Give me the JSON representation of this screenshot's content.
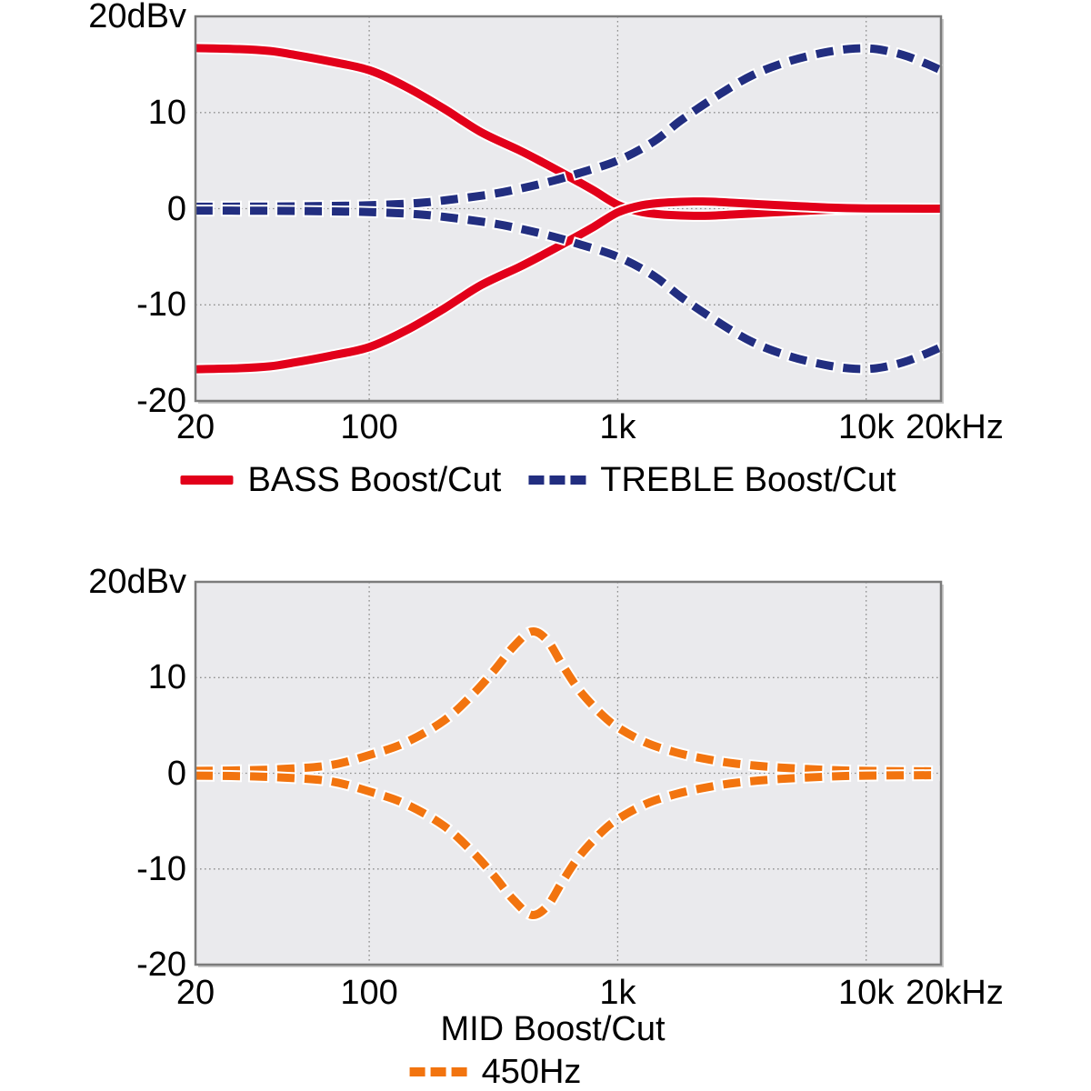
{
  "colors": {
    "bass": "#e2001a",
    "treble": "#222e80",
    "mid": "#f2740f",
    "plot_bg": "#eaeaed",
    "grid": "#8f8f8f",
    "frame": "#7b7b7b",
    "text": "#000000",
    "casing": "#ffffff"
  },
  "chart_data": [
    {
      "type": "line",
      "title": "",
      "xlabel": "",
      "ylabel": "dBv",
      "xscale": "log",
      "xlim": [
        20,
        20000
      ],
      "ylim": [
        -20,
        20
      ],
      "grid_x": [
        100,
        1000,
        10000
      ],
      "grid_y": [
        10,
        0,
        -10
      ],
      "y_ticks": [
        {
          "v": 20,
          "label": "20dBv"
        },
        {
          "v": 10,
          "label": "10"
        },
        {
          "v": 0,
          "label": "0"
        },
        {
          "v": -10,
          "label": "-10"
        },
        {
          "v": -20,
          "label": "-20"
        }
      ],
      "x_ticks": [
        {
          "f": 20,
          "label": "20"
        },
        {
          "f": 100,
          "label": "100"
        },
        {
          "f": 1000,
          "label": "1k"
        },
        {
          "f": 10000,
          "label": "10k"
        },
        {
          "f": 20000,
          "label": "20kHz",
          "dx": 15
        }
      ],
      "series": [
        {
          "name": "BASS Boost",
          "style": "solid",
          "color_key": "bass",
          "points": [
            [
              20,
              16.7
            ],
            [
              30,
              16.6
            ],
            [
              40,
              16.4
            ],
            [
              50,
              16.0
            ],
            [
              70,
              15.3
            ],
            [
              100,
              14.4
            ],
            [
              140,
              12.7
            ],
            [
              200,
              10.4
            ],
            [
              280,
              8.0
            ],
            [
              400,
              6.1
            ],
            [
              500,
              4.8
            ],
            [
              630,
              3.4
            ],
            [
              800,
              1.9
            ],
            [
              1000,
              0.4
            ],
            [
              1250,
              -0.35
            ],
            [
              1600,
              -0.65
            ],
            [
              2200,
              -0.75
            ],
            [
              3000,
              -0.6
            ],
            [
              4500,
              -0.35
            ],
            [
              7000,
              -0.12
            ],
            [
              10000,
              -0.03
            ],
            [
              20000,
              0
            ]
          ]
        },
        {
          "name": "BASS Cut",
          "style": "solid",
          "color_key": "bass",
          "points": [
            [
              20,
              -16.7
            ],
            [
              30,
              -16.6
            ],
            [
              40,
              -16.4
            ],
            [
              50,
              -16.0
            ],
            [
              70,
              -15.3
            ],
            [
              100,
              -14.4
            ],
            [
              140,
              -12.7
            ],
            [
              200,
              -10.4
            ],
            [
              280,
              -8.0
            ],
            [
              400,
              -6.1
            ],
            [
              500,
              -4.8
            ],
            [
              630,
              -3.4
            ],
            [
              800,
              -1.9
            ],
            [
              1000,
              -0.4
            ],
            [
              1250,
              0.35
            ],
            [
              1600,
              0.65
            ],
            [
              2200,
              0.75
            ],
            [
              3000,
              0.6
            ],
            [
              4500,
              0.35
            ],
            [
              7000,
              0.12
            ],
            [
              10000,
              0.03
            ],
            [
              20000,
              0
            ]
          ]
        },
        {
          "name": "TREBLE Boost",
          "style": "dashed",
          "color_key": "treble",
          "points": [
            [
              20,
              0.2
            ],
            [
              40,
              0.22
            ],
            [
              70,
              0.28
            ],
            [
              100,
              0.35
            ],
            [
              150,
              0.55
            ],
            [
              200,
              0.85
            ],
            [
              300,
              1.45
            ],
            [
              400,
              2.05
            ],
            [
              550,
              2.9
            ],
            [
              700,
              3.7
            ],
            [
              1000,
              5.0
            ],
            [
              1400,
              7.0
            ],
            [
              1800,
              9.2
            ],
            [
              2500,
              11.7
            ],
            [
              3500,
              13.9
            ],
            [
              5000,
              15.4
            ],
            [
              7000,
              16.3
            ],
            [
              9000,
              16.65
            ],
            [
              11000,
              16.6
            ],
            [
              14000,
              16.0
            ],
            [
              17000,
              15.2
            ],
            [
              20000,
              14.4
            ]
          ]
        },
        {
          "name": "TREBLE Cut",
          "style": "dashed",
          "color_key": "treble",
          "points": [
            [
              20,
              -0.2
            ],
            [
              40,
              -0.22
            ],
            [
              70,
              -0.28
            ],
            [
              100,
              -0.35
            ],
            [
              150,
              -0.55
            ],
            [
              200,
              -0.85
            ],
            [
              300,
              -1.45
            ],
            [
              400,
              -2.05
            ],
            [
              550,
              -2.9
            ],
            [
              700,
              -3.7
            ],
            [
              1000,
              -5.0
            ],
            [
              1400,
              -7.0
            ],
            [
              1800,
              -9.2
            ],
            [
              2500,
              -11.7
            ],
            [
              3500,
              -13.9
            ],
            [
              5000,
              -15.4
            ],
            [
              7000,
              -16.3
            ],
            [
              9000,
              -16.65
            ],
            [
              11000,
              -16.6
            ],
            [
              14000,
              -16.0
            ],
            [
              17000,
              -15.2
            ],
            [
              20000,
              -14.4
            ]
          ]
        }
      ],
      "legend": [
        {
          "label": "BASS Boost/Cut",
          "style": "solid",
          "color_key": "bass"
        },
        {
          "label": "TREBLE Boost/Cut",
          "style": "dashed",
          "color_key": "treble"
        }
      ]
    },
    {
      "type": "line",
      "title": "",
      "xlabel": "MID Boost/Cut",
      "ylabel": "dBv",
      "xscale": "log",
      "xlim": [
        20,
        20000
      ],
      "ylim": [
        -20,
        20
      ],
      "grid_x": [
        100,
        1000,
        10000
      ],
      "grid_y": [
        10,
        0,
        -10
      ],
      "y_ticks": [
        {
          "v": 20,
          "label": "20dBv"
        },
        {
          "v": 10,
          "label": "10"
        },
        {
          "v": 0,
          "label": "0"
        },
        {
          "v": -10,
          "label": "-10"
        },
        {
          "v": -20,
          "label": "-20"
        }
      ],
      "x_ticks": [
        {
          "f": 20,
          "label": "20"
        },
        {
          "f": 100,
          "label": "100"
        },
        {
          "f": 1000,
          "label": "1k"
        },
        {
          "f": 10000,
          "label": "10k"
        },
        {
          "f": 20000,
          "label": "20kHz",
          "dx": 15
        }
      ],
      "series": [
        {
          "name": "MID Boost 450Hz",
          "style": "dashed",
          "color_key": "mid",
          "points": [
            [
              20,
              0.25
            ],
            [
              30,
              0.3
            ],
            [
              45,
              0.45
            ],
            [
              70,
              0.85
            ],
            [
              100,
              1.9
            ],
            [
              140,
              3.2
            ],
            [
              200,
              5.5
            ],
            [
              260,
              8.2
            ],
            [
              320,
              10.8
            ],
            [
              380,
              13.2
            ],
            [
              450,
              14.8
            ],
            [
              520,
              13.9
            ],
            [
              600,
              11.3
            ],
            [
              700,
              8.7
            ],
            [
              850,
              6.3
            ],
            [
              1000,
              4.8
            ],
            [
              1300,
              3.2
            ],
            [
              1700,
              2.2
            ],
            [
              2200,
              1.55
            ],
            [
              3000,
              1.0
            ],
            [
              4500,
              0.6
            ],
            [
              7000,
              0.35
            ],
            [
              10000,
              0.25
            ],
            [
              20000,
              0.2
            ]
          ]
        },
        {
          "name": "MID Cut 450Hz",
          "style": "dashed",
          "color_key": "mid",
          "points": [
            [
              20,
              -0.25
            ],
            [
              30,
              -0.3
            ],
            [
              45,
              -0.45
            ],
            [
              70,
              -0.85
            ],
            [
              100,
              -1.9
            ],
            [
              140,
              -3.2
            ],
            [
              200,
              -5.5
            ],
            [
              260,
              -8.2
            ],
            [
              320,
              -10.8
            ],
            [
              380,
              -13.2
            ],
            [
              450,
              -14.8
            ],
            [
              520,
              -13.9
            ],
            [
              600,
              -11.3
            ],
            [
              700,
              -8.7
            ],
            [
              850,
              -6.3
            ],
            [
              1000,
              -4.8
            ],
            [
              1300,
              -3.2
            ],
            [
              1700,
              -2.2
            ],
            [
              2200,
              -1.55
            ],
            [
              3000,
              -1.0
            ],
            [
              4500,
              -0.6
            ],
            [
              7000,
              -0.35
            ],
            [
              10000,
              -0.25
            ],
            [
              20000,
              -0.2
            ]
          ]
        }
      ],
      "legend": [
        {
          "label": "450Hz",
          "style": "dashed",
          "color_key": "mid"
        }
      ]
    }
  ]
}
